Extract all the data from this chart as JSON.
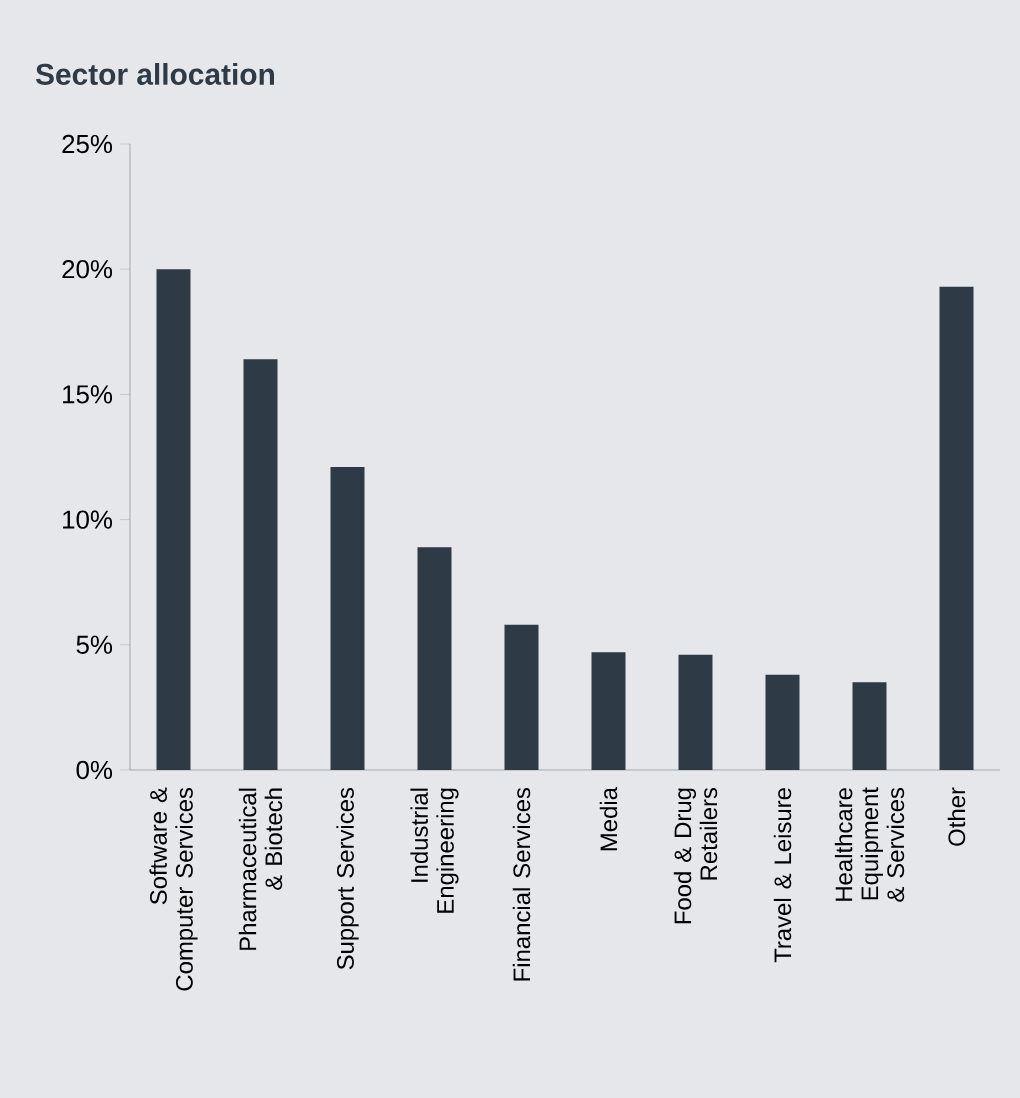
{
  "chart_data": {
    "type": "bar",
    "title": "Sector allocation",
    "categories": [
      "Software & Computer Services",
      "Pharmaceutical & Biotech",
      "Support Services",
      "Industrial Engineering",
      "Financial Services",
      "Media",
      "Food & Drug Retailers",
      "Travel & Leisure",
      "Healthcare Equipment & Services",
      "Other"
    ],
    "values": [
      20.0,
      16.4,
      12.1,
      8.9,
      5.8,
      4.7,
      4.6,
      3.8,
      3.5,
      19.3
    ],
    "color": "#2e3a46",
    "ylim": [
      0,
      25
    ],
    "yticks": [
      {
        "value": 0,
        "label": "0%"
      },
      {
        "value": 5,
        "label": "5%"
      },
      {
        "value": 10,
        "label": "10%"
      },
      {
        "value": 15,
        "label": "15%"
      },
      {
        "value": 20,
        "label": "20%"
      },
      {
        "value": 25,
        "label": "25%"
      }
    ],
    "grid": false
  }
}
